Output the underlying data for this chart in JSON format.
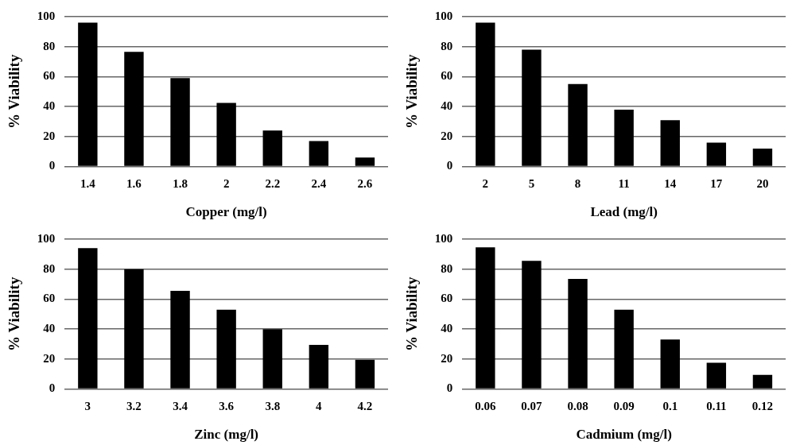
{
  "chart_data": [
    {
      "type": "bar",
      "xlabel": "Copper (mg/l)",
      "ylabel": "% Viability",
      "categories": [
        "1.4",
        "1.6",
        "1.8",
        "2",
        "2.2",
        "2.4",
        "2.6"
      ],
      "values": [
        96,
        76.5,
        59,
        42.5,
        24,
        17,
        6
      ],
      "color": "#000000",
      "ylim": [
        0,
        100
      ],
      "yticks": [
        0,
        20,
        40,
        60,
        80,
        100
      ],
      "grid": "y"
    },
    {
      "type": "bar",
      "xlabel": "Lead (mg/l)",
      "ylabel": "% Viability",
      "categories": [
        "2",
        "5",
        "8",
        "11",
        "14",
        "17",
        "20"
      ],
      "values": [
        96,
        78,
        55,
        38,
        31,
        16,
        12
      ],
      "color": "#000000",
      "ylim": [
        0,
        100
      ],
      "yticks": [
        0,
        20,
        40,
        60,
        80,
        100
      ],
      "grid": "y"
    },
    {
      "type": "bar",
      "xlabel": "Zinc (mg/l)",
      "ylabel": "% Viability",
      "categories": [
        "3",
        "3.2",
        "3.4",
        "3.6",
        "3.8",
        "4",
        "4.2"
      ],
      "values": [
        94,
        80,
        65.5,
        53,
        40,
        29.5,
        19.5
      ],
      "color": "#000000",
      "ylim": [
        0,
        100
      ],
      "yticks": [
        0,
        20,
        40,
        60,
        80,
        100
      ],
      "grid": "y"
    },
    {
      "type": "bar",
      "xlabel": "Cadmium (mg/l)",
      "ylabel": "% Viability",
      "categories": [
        "0.06",
        "0.07",
        "0.08",
        "0.09",
        "0.1",
        "0.11",
        "0.12"
      ],
      "values": [
        94.5,
        85.5,
        73.5,
        53,
        33,
        17.5,
        9.5
      ],
      "color": "#000000",
      "ylim": [
        0,
        100
      ],
      "yticks": [
        0,
        20,
        40,
        60,
        80,
        100
      ],
      "grid": "y"
    }
  ]
}
